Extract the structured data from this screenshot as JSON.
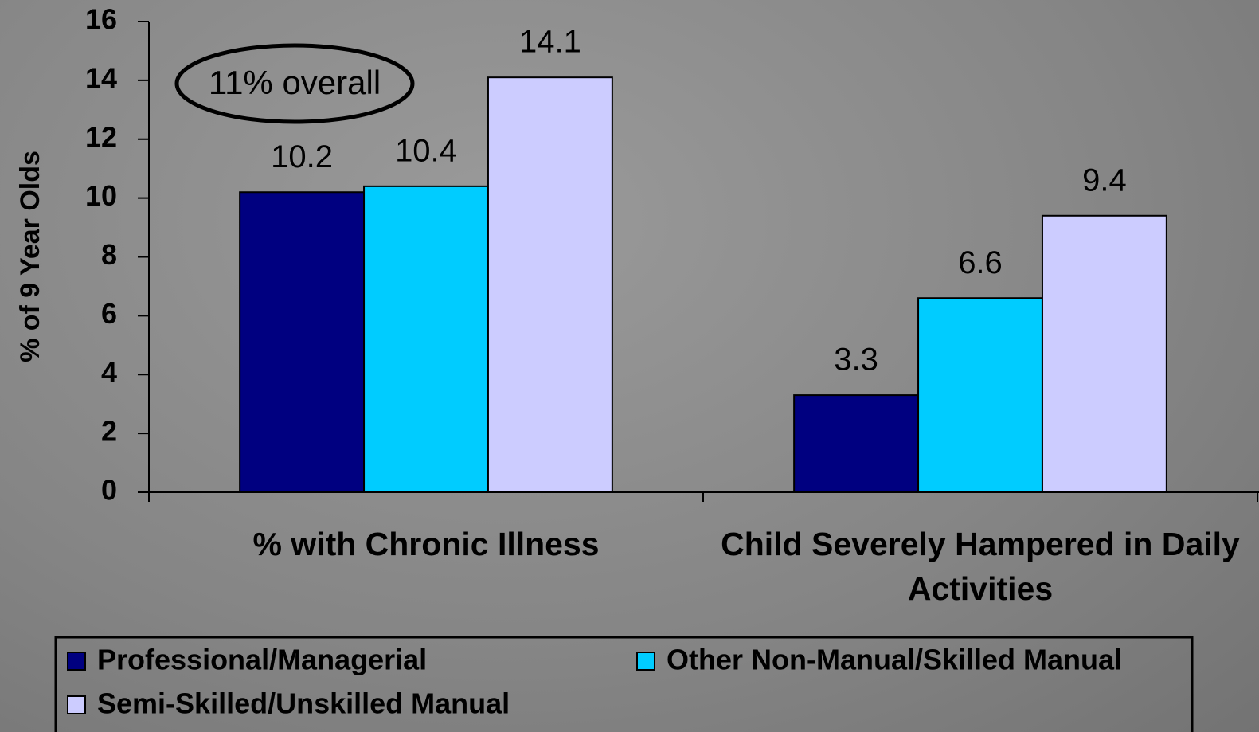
{
  "chart_data": {
    "type": "bar",
    "y_label": "% of 9 Year Olds",
    "annotation": "11% overall",
    "categories": [
      "% with Chronic Illness",
      "Child Severely Hampered in Daily Activities"
    ],
    "series": [
      {
        "name": "Professional/Managerial",
        "color": "#000080",
        "values": [
          10.2,
          3.3
        ]
      },
      {
        "name": "Other Non-Manual/Skilled Manual",
        "color": "#00ccff",
        "values": [
          10.4,
          6.6
        ]
      },
      {
        "name": "Semi-Skilled/Unskilled Manual",
        "color": "#ccccff",
        "values": [
          14.1,
          9.4
        ]
      }
    ],
    "ylim": [
      0,
      16
    ],
    "yticks": [
      0,
      2,
      4,
      6,
      8,
      10,
      12,
      14,
      16
    ],
    "grid": false
  }
}
